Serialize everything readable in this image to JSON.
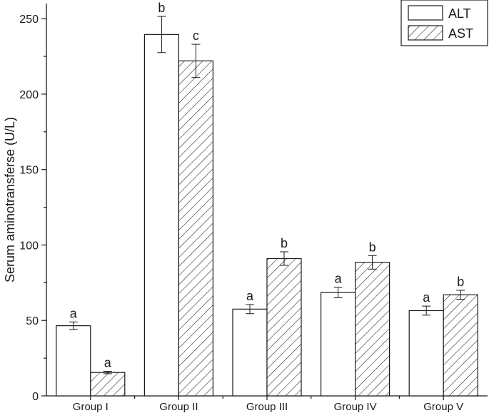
{
  "chart_data": {
    "type": "bar",
    "ylabel": "Serum aminotransferse (U/L)",
    "xlabel": "",
    "ylim": [
      0,
      260
    ],
    "yticks": [
      0,
      50,
      100,
      150,
      200,
      250
    ],
    "legend_position": "top-right",
    "categories": [
      "Group I",
      "Group II",
      "Group III",
      "Group IV",
      "Group V"
    ],
    "series": [
      {
        "name": "ALT",
        "fill": "plain",
        "values": [
          46.5,
          239.5,
          57.5,
          68.5,
          56.5
        ],
        "errors": [
          2.5,
          12,
          3,
          3.5,
          3
        ],
        "annotations": [
          "a",
          "b",
          "a",
          "a",
          "a"
        ]
      },
      {
        "name": "AST",
        "fill": "hatched",
        "values": [
          15.5,
          222,
          91,
          88.5,
          67
        ],
        "errors": [
          0.8,
          11,
          4.5,
          4.5,
          3
        ],
        "annotations": [
          "a",
          "c",
          "b",
          "b",
          "b"
        ]
      }
    ],
    "colors": {
      "bar_edge": "#1a1a1a",
      "bar_fill": "#ffffff"
    }
  }
}
